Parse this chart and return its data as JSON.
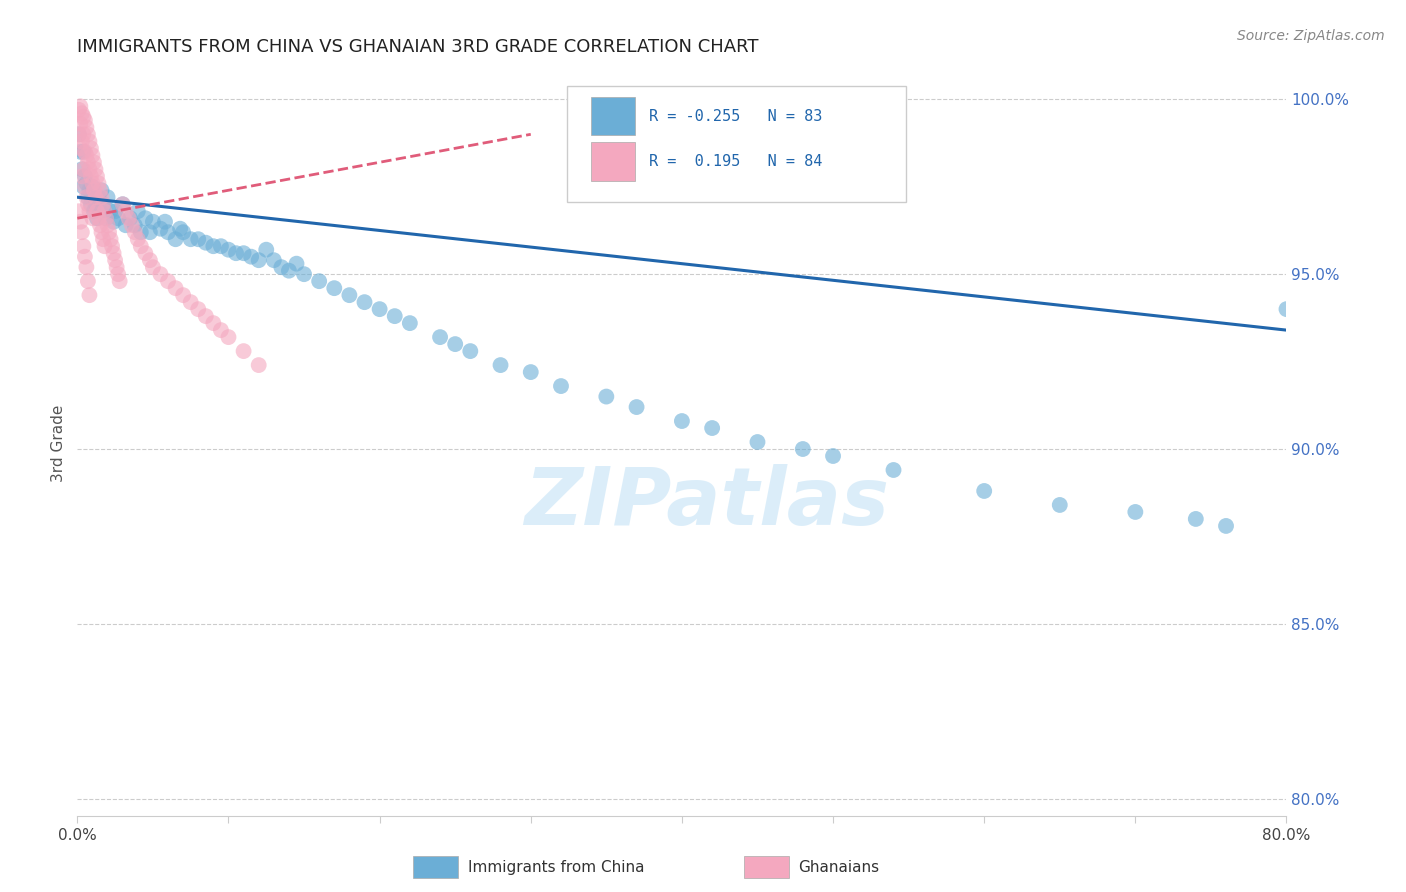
{
  "title": "IMMIGRANTS FROM CHINA VS GHANAIAN 3RD GRADE CORRELATION CHART",
  "source_text": "Source: ZipAtlas.com",
  "ylabel": "3rd Grade",
  "xlim": [
    0.0,
    0.8
  ],
  "ylim": [
    0.795,
    1.008
  ],
  "xticks": [
    0.0,
    0.1,
    0.2,
    0.3,
    0.4,
    0.5,
    0.6,
    0.7,
    0.8
  ],
  "xticklabels": [
    "0.0%",
    "",
    "",
    "",
    "",
    "",
    "",
    "",
    "80.0%"
  ],
  "yticks_right": [
    0.8,
    0.85,
    0.9,
    0.95,
    1.0
  ],
  "yticklabels_right": [
    "80.0%",
    "85.0%",
    "90.0%",
    "95.0%",
    "100.0%"
  ],
  "blue_R": -0.255,
  "blue_N": 83,
  "pink_R": 0.195,
  "pink_N": 84,
  "blue_color": "#6baed6",
  "pink_color": "#f4a8bf",
  "blue_line_color": "#2166ac",
  "pink_line_color": "#e05c7a",
  "watermark_text": "ZIPatlas",
  "legend_label_blue": "Immigrants from China",
  "legend_label_pink": "Ghanaians",
  "blue_line_x0": 0.0,
  "blue_line_y0": 0.972,
  "blue_line_x1": 0.8,
  "blue_line_y1": 0.934,
  "pink_line_x0": 0.0,
  "pink_line_y0": 0.966,
  "pink_line_x1": 0.3,
  "pink_line_y1": 0.99,
  "blue_scatter_x": [
    0.001,
    0.002,
    0.003,
    0.004,
    0.004,
    0.005,
    0.006,
    0.007,
    0.008,
    0.009,
    0.01,
    0.011,
    0.012,
    0.013,
    0.014,
    0.015,
    0.016,
    0.017,
    0.018,
    0.019,
    0.02,
    0.022,
    0.024,
    0.025,
    0.027,
    0.03,
    0.032,
    0.035,
    0.038,
    0.04,
    0.042,
    0.045,
    0.048,
    0.05,
    0.055,
    0.058,
    0.06,
    0.065,
    0.068,
    0.07,
    0.075,
    0.08,
    0.085,
    0.09,
    0.095,
    0.1,
    0.105,
    0.11,
    0.115,
    0.12,
    0.125,
    0.13,
    0.135,
    0.14,
    0.145,
    0.15,
    0.16,
    0.17,
    0.18,
    0.19,
    0.2,
    0.21,
    0.22,
    0.24,
    0.25,
    0.26,
    0.28,
    0.3,
    0.32,
    0.35,
    0.37,
    0.4,
    0.42,
    0.45,
    0.48,
    0.5,
    0.54,
    0.6,
    0.65,
    0.7,
    0.74,
    0.76,
    0.8
  ],
  "blue_scatter_y": [
    0.99,
    0.985,
    0.98,
    0.975,
    0.985,
    0.978,
    0.976,
    0.972,
    0.974,
    0.97,
    0.975,
    0.968,
    0.97,
    0.966,
    0.972,
    0.968,
    0.974,
    0.97,
    0.968,
    0.966,
    0.972,
    0.968,
    0.965,
    0.968,
    0.966,
    0.97,
    0.964,
    0.966,
    0.964,
    0.968,
    0.962,
    0.966,
    0.962,
    0.965,
    0.963,
    0.965,
    0.962,
    0.96,
    0.963,
    0.962,
    0.96,
    0.96,
    0.959,
    0.958,
    0.958,
    0.957,
    0.956,
    0.956,
    0.955,
    0.954,
    0.957,
    0.954,
    0.952,
    0.951,
    0.953,
    0.95,
    0.948,
    0.946,
    0.944,
    0.942,
    0.94,
    0.938,
    0.936,
    0.932,
    0.93,
    0.928,
    0.924,
    0.922,
    0.918,
    0.915,
    0.912,
    0.908,
    0.906,
    0.902,
    0.9,
    0.898,
    0.894,
    0.888,
    0.884,
    0.882,
    0.88,
    0.878,
    0.94
  ],
  "pink_scatter_x": [
    0.001,
    0.001,
    0.002,
    0.002,
    0.002,
    0.003,
    0.003,
    0.003,
    0.004,
    0.004,
    0.004,
    0.005,
    0.005,
    0.005,
    0.006,
    0.006,
    0.006,
    0.007,
    0.007,
    0.007,
    0.008,
    0.008,
    0.008,
    0.009,
    0.009,
    0.01,
    0.01,
    0.01,
    0.011,
    0.011,
    0.012,
    0.012,
    0.013,
    0.013,
    0.014,
    0.014,
    0.015,
    0.015,
    0.016,
    0.016,
    0.017,
    0.017,
    0.018,
    0.018,
    0.019,
    0.02,
    0.021,
    0.022,
    0.023,
    0.024,
    0.025,
    0.026,
    0.027,
    0.028,
    0.03,
    0.032,
    0.034,
    0.036,
    0.038,
    0.04,
    0.042,
    0.045,
    0.048,
    0.05,
    0.055,
    0.06,
    0.065,
    0.07,
    0.075,
    0.08,
    0.085,
    0.09,
    0.095,
    0.1,
    0.11,
    0.12,
    0.001,
    0.002,
    0.003,
    0.004,
    0.005,
    0.006,
    0.007,
    0.008
  ],
  "pink_scatter_y": [
    0.997,
    0.99,
    0.998,
    0.993,
    0.986,
    0.996,
    0.988,
    0.978,
    0.995,
    0.99,
    0.98,
    0.994,
    0.985,
    0.975,
    0.992,
    0.984,
    0.972,
    0.99,
    0.982,
    0.97,
    0.988,
    0.98,
    0.968,
    0.986,
    0.978,
    0.984,
    0.976,
    0.966,
    0.982,
    0.974,
    0.98,
    0.972,
    0.978,
    0.968,
    0.976,
    0.966,
    0.974,
    0.964,
    0.972,
    0.962,
    0.97,
    0.96,
    0.968,
    0.958,
    0.966,
    0.964,
    0.962,
    0.96,
    0.958,
    0.956,
    0.954,
    0.952,
    0.95,
    0.948,
    0.97,
    0.968,
    0.966,
    0.964,
    0.962,
    0.96,
    0.958,
    0.956,
    0.954,
    0.952,
    0.95,
    0.948,
    0.946,
    0.944,
    0.942,
    0.94,
    0.938,
    0.936,
    0.934,
    0.932,
    0.928,
    0.924,
    0.968,
    0.965,
    0.962,
    0.958,
    0.955,
    0.952,
    0.948,
    0.944
  ]
}
